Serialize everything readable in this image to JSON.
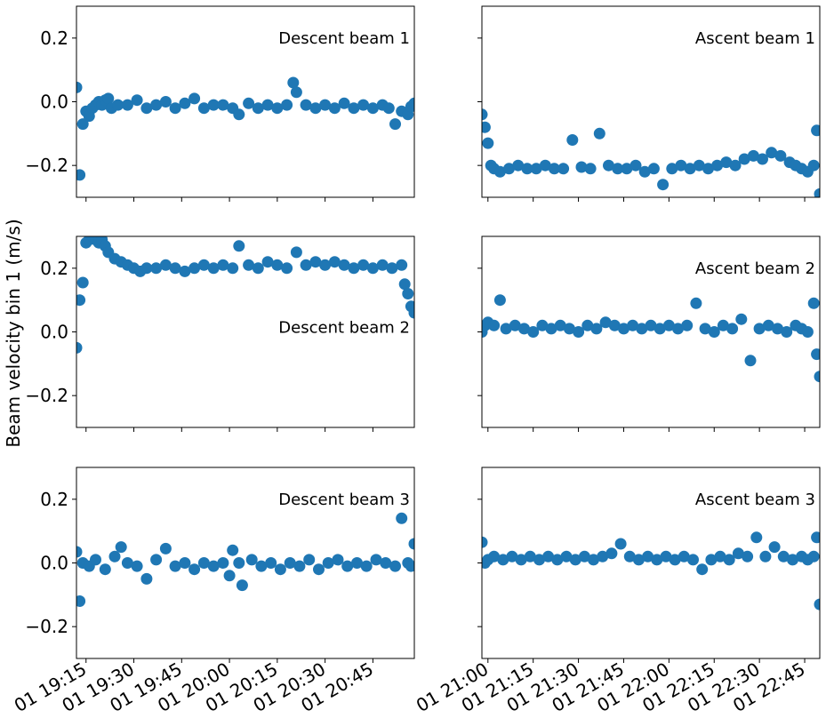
{
  "figure": {
    "ylabel": "Beam velocity bin 1 (m/s)",
    "point_color": "#1f77b4"
  },
  "chart_data": {
    "type": "scatter",
    "ylabel": "Beam velocity bin 1 (m/s)",
    "ylim": [
      -0.3,
      0.3
    ],
    "yticks": [
      -0.2,
      0.0,
      0.2
    ],
    "ytick_labels": [
      "−0.2",
      "0.0",
      "0.2"
    ],
    "grid": false,
    "descent_xlim": [
      "01 19:12",
      "01 20:58"
    ],
    "ascent_xlim": [
      "01 20:58",
      "01 22:50"
    ],
    "descent_xticks": [
      "01 19:15",
      "01 19:30",
      "01 19:45",
      "01 20:00",
      "01 20:15",
      "01 20:30",
      "01 20:45"
    ],
    "ascent_xticks": [
      "01 21:00",
      "01 21:15",
      "01 21:30",
      "01 21:45",
      "01 22:00",
      "01 22:15",
      "01 22:30",
      "01 22:45"
    ],
    "panels": [
      {
        "label": "Descent beam 1",
        "column": "descent",
        "row": 1,
        "x": [
          "19:12",
          "19:13",
          "19:14",
          "19:15",
          "19:16",
          "19:17",
          "19:18",
          "19:19",
          "19:20",
          "19:21",
          "19:22",
          "19:23",
          "19:25",
          "19:28",
          "19:31",
          "19:34",
          "19:37",
          "19:40",
          "19:43",
          "19:46",
          "19:49",
          "19:52",
          "19:55",
          "19:58",
          "20:01",
          "20:03",
          "20:06",
          "20:09",
          "20:12",
          "20:15",
          "20:18",
          "20:20",
          "20:21",
          "20:24",
          "20:27",
          "20:30",
          "20:33",
          "20:36",
          "20:39",
          "20:42",
          "20:45",
          "20:48",
          "20:50",
          "20:52",
          "20:54",
          "20:56",
          "20:57",
          "20:58"
        ],
        "y": [
          0.045,
          -0.23,
          -0.07,
          -0.03,
          -0.045,
          -0.02,
          -0.01,
          0.0,
          -0.01,
          0.005,
          0.01,
          -0.02,
          -0.01,
          -0.01,
          0.005,
          -0.02,
          -0.01,
          0.0,
          -0.02,
          -0.005,
          0.01,
          -0.02,
          -0.01,
          -0.01,
          -0.02,
          -0.04,
          -0.005,
          -0.02,
          -0.01,
          -0.02,
          -0.01,
          0.06,
          0.03,
          -0.01,
          -0.02,
          -0.01,
          -0.02,
          -0.005,
          -0.02,
          -0.01,
          -0.02,
          -0.01,
          -0.02,
          -0.07,
          -0.03,
          -0.04,
          -0.015,
          -0.005
        ]
      },
      {
        "label": "Ascent beam 1",
        "column": "ascent",
        "row": 1,
        "x": [
          "20:58",
          "20:59",
          "21:00",
          "21:01",
          "21:02",
          "21:04",
          "21:07",
          "21:10",
          "21:13",
          "21:16",
          "21:19",
          "21:22",
          "21:25",
          "21:28",
          "21:31",
          "21:34",
          "21:37",
          "21:40",
          "21:43",
          "21:46",
          "21:49",
          "21:52",
          "21:55",
          "21:58",
          "22:01",
          "22:04",
          "22:07",
          "22:10",
          "22:13",
          "22:16",
          "22:19",
          "22:22",
          "22:25",
          "22:28",
          "22:31",
          "22:34",
          "22:37",
          "22:40",
          "22:42",
          "22:44",
          "22:46",
          "22:48",
          "22:49",
          "22:50"
        ],
        "y": [
          -0.04,
          -0.08,
          -0.13,
          -0.2,
          -0.21,
          -0.22,
          -0.21,
          -0.2,
          -0.21,
          -0.21,
          -0.2,
          -0.21,
          -0.21,
          -0.12,
          -0.205,
          -0.21,
          -0.1,
          -0.2,
          -0.21,
          -0.21,
          -0.2,
          -0.22,
          -0.21,
          -0.26,
          -0.21,
          -0.2,
          -0.21,
          -0.2,
          -0.21,
          -0.2,
          -0.19,
          -0.2,
          -0.18,
          -0.17,
          -0.18,
          -0.16,
          -0.17,
          -0.19,
          -0.2,
          -0.21,
          -0.22,
          -0.2,
          -0.09,
          -0.29
        ]
      },
      {
        "label": "Descent beam 2",
        "column": "descent",
        "row": 2,
        "x": [
          "19:12",
          "19:13",
          "19:14",
          "19:15",
          "19:16",
          "19:17",
          "19:18",
          "19:19",
          "19:20",
          "19:21",
          "19:22",
          "19:24",
          "19:26",
          "19:28",
          "19:30",
          "19:32",
          "19:34",
          "19:37",
          "19:40",
          "19:43",
          "19:46",
          "19:49",
          "19:52",
          "19:55",
          "19:58",
          "20:01",
          "20:03",
          "20:06",
          "20:09",
          "20:12",
          "20:15",
          "20:18",
          "20:21",
          "20:24",
          "20:27",
          "20:30",
          "20:33",
          "20:36",
          "20:39",
          "20:42",
          "20:45",
          "20:48",
          "20:51",
          "20:54",
          "20:55",
          "20:56",
          "20:57",
          "20:58"
        ],
        "y": [
          -0.05,
          0.1,
          0.155,
          0.28,
          0.29,
          0.3,
          0.29,
          0.28,
          0.29,
          0.27,
          0.25,
          0.23,
          0.22,
          0.21,
          0.2,
          0.19,
          0.2,
          0.2,
          0.21,
          0.2,
          0.19,
          0.2,
          0.21,
          0.2,
          0.21,
          0.2,
          0.27,
          0.21,
          0.2,
          0.22,
          0.21,
          0.2,
          0.25,
          0.21,
          0.22,
          0.21,
          0.22,
          0.21,
          0.2,
          0.21,
          0.2,
          0.21,
          0.2,
          0.21,
          0.15,
          0.12,
          0.08,
          0.06
        ]
      },
      {
        "label": "Ascent beam 2",
        "column": "ascent",
        "row": 2,
        "x": [
          "20:58",
          "20:59",
          "21:00",
          "21:02",
          "21:04",
          "21:06",
          "21:09",
          "21:12",
          "21:15",
          "21:18",
          "21:21",
          "21:24",
          "21:27",
          "21:30",
          "21:33",
          "21:36",
          "21:39",
          "21:42",
          "21:45",
          "21:48",
          "21:51",
          "21:54",
          "21:57",
          "22:00",
          "22:03",
          "22:06",
          "22:09",
          "22:12",
          "22:15",
          "22:18",
          "22:21",
          "22:24",
          "22:27",
          "22:30",
          "22:33",
          "22:36",
          "22:39",
          "22:42",
          "22:44",
          "22:46",
          "22:48",
          "22:49",
          "22:50"
        ],
        "y": [
          0.0,
          0.02,
          0.03,
          0.02,
          0.1,
          0.01,
          0.02,
          0.01,
          0.0,
          0.02,
          0.01,
          0.02,
          0.01,
          0.0,
          0.02,
          0.01,
          0.03,
          0.02,
          0.01,
          0.02,
          0.01,
          0.02,
          0.01,
          0.02,
          0.01,
          0.02,
          0.09,
          0.01,
          0.0,
          0.02,
          0.01,
          0.04,
          -0.09,
          0.01,
          0.02,
          0.01,
          0.0,
          0.02,
          0.01,
          0.0,
          0.09,
          -0.07,
          -0.14
        ]
      },
      {
        "label": "Descent beam 3",
        "column": "descent",
        "row": 3,
        "x": [
          "19:12",
          "19:13",
          "19:14",
          "19:16",
          "19:18",
          "19:21",
          "19:24",
          "19:26",
          "19:28",
          "19:31",
          "19:34",
          "19:37",
          "19:40",
          "19:43",
          "19:46",
          "19:49",
          "19:52",
          "19:55",
          "19:58",
          "20:00",
          "20:01",
          "20:03",
          "20:04",
          "20:07",
          "20:10",
          "20:13",
          "20:16",
          "20:19",
          "20:22",
          "20:25",
          "20:28",
          "20:31",
          "20:34",
          "20:37",
          "20:40",
          "20:43",
          "20:46",
          "20:49",
          "20:52",
          "20:54",
          "20:56",
          "20:57",
          "20:58"
        ],
        "y": [
          0.035,
          -0.12,
          0.0,
          -0.01,
          0.01,
          -0.02,
          0.02,
          0.05,
          0.0,
          -0.01,
          -0.05,
          0.01,
          0.045,
          -0.01,
          0.0,
          -0.02,
          0.0,
          -0.01,
          0.0,
          -0.04,
          0.04,
          0.0,
          -0.07,
          0.01,
          -0.01,
          0.0,
          -0.02,
          0.0,
          -0.01,
          0.01,
          -0.02,
          0.0,
          0.01,
          -0.01,
          0.0,
          -0.01,
          0.01,
          0.0,
          -0.01,
          0.14,
          0.0,
          -0.01,
          0.06
        ]
      },
      {
        "label": "Ascent beam 3",
        "column": "ascent",
        "row": 3,
        "x": [
          "20:58",
          "20:59",
          "21:00",
          "21:02",
          "21:05",
          "21:08",
          "21:11",
          "21:14",
          "21:17",
          "21:20",
          "21:23",
          "21:26",
          "21:29",
          "21:32",
          "21:35",
          "21:38",
          "21:41",
          "21:44",
          "21:47",
          "21:50",
          "21:53",
          "21:56",
          "21:59",
          "22:02",
          "22:05",
          "22:08",
          "22:11",
          "22:14",
          "22:17",
          "22:20",
          "22:23",
          "22:26",
          "22:29",
          "22:32",
          "22:35",
          "22:38",
          "22:41",
          "22:44",
          "22:46",
          "22:48",
          "22:49",
          "22:50"
        ],
        "y": [
          0.065,
          0.0,
          0.01,
          0.02,
          0.01,
          0.02,
          0.01,
          0.02,
          0.01,
          0.02,
          0.01,
          0.02,
          0.01,
          0.02,
          0.01,
          0.02,
          0.03,
          0.06,
          0.02,
          0.01,
          0.02,
          0.01,
          0.02,
          0.01,
          0.02,
          0.01,
          -0.02,
          0.01,
          0.02,
          0.01,
          0.03,
          0.02,
          0.08,
          0.02,
          0.05,
          0.02,
          0.01,
          0.02,
          0.01,
          0.02,
          0.08,
          -0.13
        ]
      }
    ]
  }
}
